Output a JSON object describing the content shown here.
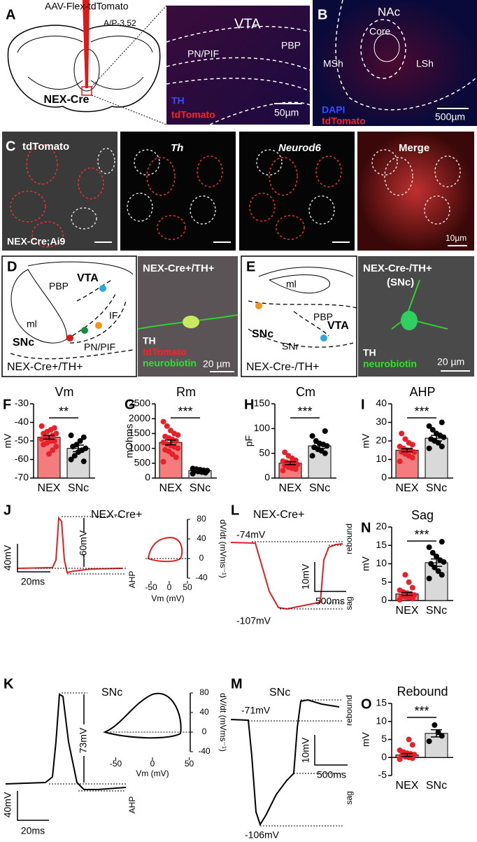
{
  "panel_A": {
    "letter": "A",
    "virus": "AAV-Flex-tdTomato",
    "coordinate": "A/P-3.52",
    "mouse": "NEX-Cre",
    "region": "VTA",
    "subregion_1": "PN/PIF",
    "subregion_2": "PBP",
    "stain_1": "TH",
    "stain_2": "tdTomato",
    "scale": "50µm"
  },
  "panel_B": {
    "letter": "B",
    "region": "NAc",
    "core": "Core",
    "medial_shell": "MSh",
    "lateral_shell": "LSh",
    "stain_1": "DAPI",
    "stain_2": "tdTomato",
    "scale": "500µm"
  },
  "panel_C": {
    "letter": "C",
    "channels": [
      "tdTomato",
      "Th",
      "Neurod6",
      "Merge"
    ],
    "genotype": "NEX-Cre;Ai9",
    "scale": "10µm"
  },
  "panel_D": {
    "letter": "D",
    "regions": [
      "VTA",
      "PBP",
      "ml",
      "IF",
      "SNc",
      "PN/PIF"
    ],
    "group": "NEX-Cre+/TH+",
    "image_title": "NEX-Cre+/TH+",
    "stain_1": "TH",
    "stain_2": "tdTomato",
    "stain_3": "neurobiotin",
    "scale": "20 µm"
  },
  "panel_E": {
    "letter": "E",
    "regions": [
      "ml",
      "PBP",
      "SNc",
      "VTA",
      "SNr"
    ],
    "group": "NEX-Cre-/TH+",
    "image_title": "NEX-Cre-/TH+",
    "image_subtitle": "(SNc)",
    "stain_1": "TH",
    "stain_2": "neurobiotin",
    "scale": "20 µm"
  },
  "panel_J": {
    "letter": "J",
    "title": "NEX-Cre+",
    "amplitude_scale": "40mV",
    "time_scale": "20ms",
    "amplitude": "60mV",
    "ahp": "AHP",
    "phase_xlabel": "Vm (mV)",
    "phase_ylabel": "dV/dt (mVms⁻¹)",
    "phase_xticks": [
      -50,
      0,
      50
    ],
    "phase_yticks": [
      80,
      40,
      0,
      -40
    ]
  },
  "panel_K": {
    "letter": "K",
    "title": "SNc",
    "amplitude_scale": "40mV",
    "time_scale": "20ms",
    "amplitude": "73mV",
    "ahp": "AHP",
    "phase_xlabel": "Vm (mV)",
    "phase_ylabel": "dV/dt (mVms⁻¹)",
    "phase_xticks": [
      -50,
      0,
      50
    ],
    "phase_yticks": [
      80,
      40,
      0,
      -40
    ]
  },
  "panel_L": {
    "letter": "L",
    "title": "NEX-Cre+",
    "baseline": "-74mV",
    "minimum": "-107mV",
    "amplitude_scale": "10mV",
    "time_scale": "500ms",
    "rebound": "rebound",
    "sag": "sag"
  },
  "panel_M": {
    "letter": "M",
    "title": "SNc",
    "baseline": "-71mV",
    "minimum": "-106mV",
    "amplitude_scale": "10mV",
    "time_scale": "500ms",
    "rebound": "rebound",
    "sag": "sag"
  },
  "chart_data": [
    {
      "type": "bar",
      "panel": "F",
      "title": "Vm",
      "ylabel": "mV",
      "categories": [
        "NEX",
        "SNc"
      ],
      "values": [
        -48,
        -54
      ],
      "errors": [
        1,
        1.8
      ],
      "points": [
        [
          -42,
          -43,
          -44,
          -45,
          -46,
          -46,
          -47,
          -48,
          -48,
          -49,
          -50,
          -50,
          -51,
          -52,
          -53,
          -55,
          -57
        ],
        [
          -47,
          -48,
          -50,
          -52,
          -53,
          -54,
          -55,
          -56,
          -58,
          -60,
          -61
        ]
      ],
      "colors": [
        "#f47c7c",
        "#d9d9d9"
      ],
      "point_colors": [
        "#e8202a",
        "#000000"
      ],
      "ylim": [
        -70,
        -30
      ],
      "yticks": [
        -30,
        -40,
        -50,
        -60,
        -70
      ],
      "significance": "**"
    },
    {
      "type": "bar",
      "panel": "G",
      "title": "Rm",
      "ylabel": "mOhms",
      "categories": [
        "NEX",
        "SNc"
      ],
      "values": [
        1200,
        250
      ],
      "errors": [
        80,
        25
      ],
      "points": [
        [
          550,
          700,
          800,
          900,
          950,
          1000,
          1050,
          1100,
          1150,
          1200,
          1250,
          1300,
          1350,
          1400,
          1450,
          1500,
          1600,
          1750,
          1900
        ],
        [
          150,
          180,
          200,
          220,
          240,
          250,
          260,
          280,
          300,
          320
        ]
      ],
      "colors": [
        "#f47c7c",
        "#d9d9d9"
      ],
      "point_colors": [
        "#e8202a",
        "#000000"
      ],
      "ylim": [
        0,
        2500
      ],
      "yticks": [
        2500,
        2000,
        1500,
        1000,
        500,
        0
      ],
      "significance": "***"
    },
    {
      "type": "bar",
      "panel": "H",
      "title": "Cm",
      "ylabel": "pF",
      "categories": [
        "NEX",
        "SNc"
      ],
      "values": [
        30,
        65
      ],
      "errors": [
        3,
        5
      ],
      "points": [
        [
          15,
          18,
          20,
          22,
          25,
          27,
          28,
          30,
          32,
          34,
          36,
          40,
          45,
          52
        ],
        [
          45,
          50,
          55,
          58,
          62,
          65,
          68,
          70,
          75,
          85,
          95
        ]
      ],
      "colors": [
        "#f47c7c",
        "#d9d9d9"
      ],
      "point_colors": [
        "#e8202a",
        "#000000"
      ],
      "ylim": [
        0,
        150
      ],
      "yticks": [
        150,
        100,
        50,
        0
      ],
      "significance": "***"
    },
    {
      "type": "bar",
      "panel": "I",
      "title": "AHP",
      "ylabel": "mV",
      "categories": [
        "NEX",
        "SNc"
      ],
      "values": [
        15,
        21.5
      ],
      "errors": [
        0.8,
        1.5
      ],
      "points": [
        [
          9,
          11,
          12,
          13,
          14,
          14,
          15,
          15,
          16,
          17,
          18,
          19,
          21,
          24
        ],
        [
          16,
          17,
          19,
          20,
          21,
          22,
          23,
          24,
          26,
          28,
          30
        ]
      ],
      "colors": [
        "#f47c7c",
        "#d9d9d9"
      ],
      "point_colors": [
        "#e8202a",
        "#000000"
      ],
      "ylim": [
        0,
        40
      ],
      "yticks": [
        40,
        30,
        20,
        10,
        0
      ],
      "significance": "***"
    },
    {
      "type": "bar",
      "panel": "N",
      "title": "Sag",
      "ylabel": "mV",
      "categories": [
        "NEX",
        "SNc"
      ],
      "values": [
        1.8,
        10.3
      ],
      "errors": [
        0.4,
        1
      ],
      "points": [
        [
          0.2,
          0.5,
          0.8,
          1,
          1.2,
          1.5,
          1.8,
          2,
          2.3,
          2.8,
          3.5,
          5,
          7
        ],
        [
          6,
          7,
          8,
          9,
          10,
          10.5,
          11,
          12,
          13,
          14.5,
          16
        ]
      ],
      "colors": [
        "#f47c7c",
        "#d9d9d9"
      ],
      "point_colors": [
        "#e8202a",
        "#000000"
      ],
      "ylim": [
        0,
        20
      ],
      "yticks": [
        20,
        15,
        10,
        5,
        0
      ],
      "significance": "***"
    },
    {
      "type": "bar",
      "panel": "O",
      "title": "Rebound",
      "ylabel": "mV",
      "categories": [
        "NEX",
        "SNc"
      ],
      "values": [
        0.7,
        6.7
      ],
      "errors": [
        0.4,
        1
      ],
      "points": [
        [
          -0.5,
          -0.2,
          0,
          0.2,
          0.5,
          0.8,
          1,
          1.2,
          1.5,
          2,
          3.5,
          5
        ],
        [
          4.5,
          6,
          7,
          9
        ]
      ],
      "colors": [
        "#f47c7c",
        "#d9d9d9"
      ],
      "point_colors": [
        "#e8202a",
        "#000000"
      ],
      "ylim": [
        -5,
        15
      ],
      "yticks": [
        15,
        10,
        5,
        0,
        -5
      ],
      "significance": "***"
    }
  ]
}
